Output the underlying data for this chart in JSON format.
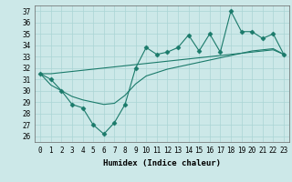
{
  "x": [
    0,
    1,
    2,
    3,
    4,
    5,
    6,
    7,
    8,
    9,
    10,
    11,
    12,
    13,
    14,
    15,
    16,
    17,
    18,
    19,
    20,
    21,
    22,
    23
  ],
  "line_main": [
    31.5,
    31.0,
    30.0,
    28.8,
    28.5,
    27.0,
    26.2,
    27.2,
    28.8,
    32.0,
    33.8,
    33.2,
    33.4,
    33.8,
    34.9,
    33.5,
    35.0,
    33.4,
    37.0,
    35.2,
    35.2,
    34.6,
    35.0,
    33.2
  ],
  "line_upper": [
    31.5,
    31.5,
    31.6,
    31.7,
    31.8,
    31.9,
    32.0,
    32.1,
    32.2,
    32.3,
    32.4,
    32.5,
    32.6,
    32.7,
    32.8,
    32.9,
    33.0,
    33.1,
    33.2,
    33.3,
    33.4,
    33.5,
    33.6,
    33.2
  ],
  "line_lower": [
    31.5,
    30.5,
    30.0,
    29.5,
    29.2,
    29.0,
    28.8,
    28.9,
    29.6,
    30.6,
    31.3,
    31.6,
    31.9,
    32.1,
    32.3,
    32.5,
    32.7,
    32.9,
    33.1,
    33.3,
    33.5,
    33.6,
    33.7,
    33.2
  ],
  "bg_color": "#cce8e8",
  "grid_color": "#aad4d4",
  "line_color": "#1a7a6a",
  "ylabel_values": [
    26,
    27,
    28,
    29,
    30,
    31,
    32,
    33,
    34,
    35,
    36,
    37
  ],
  "xlabel": "Humidex (Indice chaleur)",
  "xlim": [
    -0.5,
    23.5
  ],
  "ylim": [
    25.5,
    37.5
  ],
  "xtick_labels": [
    "0",
    "1",
    "2",
    "3",
    "4",
    "5",
    "6",
    "7",
    "8",
    "9",
    "10",
    "11",
    "12",
    "13",
    "14",
    "15",
    "16",
    "17",
    "18",
    "19",
    "20",
    "21",
    "22",
    "23"
  ],
  "marker": "D",
  "marker_size": 2.5,
  "line_width": 0.8,
  "font_size_axis": 6.5,
  "font_size_ticks": 5.5
}
